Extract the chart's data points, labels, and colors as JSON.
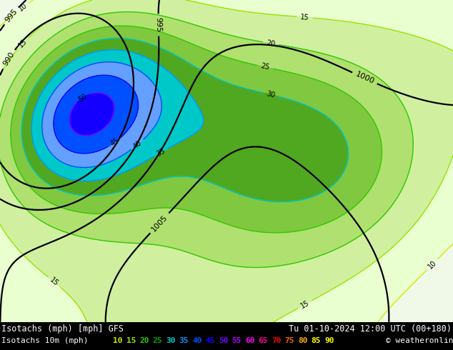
{
  "title_left": "Isotachs (mph) [mph] GFS",
  "title_right": "Tu 01-10-2024 12:00 UTC (00+180)",
  "subtitle_left": "Isotachs 10m (mph)",
  "copyright": "© weatheronline.co.uk",
  "levels": [
    10,
    15,
    20,
    25,
    30,
    35,
    40,
    45,
    50,
    55,
    60,
    65,
    70,
    75,
    80,
    85,
    90
  ],
  "fill_colors": [
    "#eaffd0",
    "#d0f0a0",
    "#b0e070",
    "#80c840",
    "#50a820",
    "#00c8c8",
    "#64a0ff",
    "#0050ff",
    "#1400ff",
    "#7800ff",
    "#b400ff",
    "#ff00ff",
    "#ff0096",
    "#ff0000",
    "#ff6400",
    "#ffaa00",
    "#ffff00"
  ],
  "contour_colors": {
    "10": "#c8f000",
    "15": "#96e600",
    "20": "#32c800",
    "25": "#32c800",
    "30": "#00c8c8",
    "35": "#0096ff",
    "40": "#0050ff",
    "45": "#1400ff",
    "50": "#7800ff",
    "55": "#b400ff",
    "60": "#ff00ff",
    "65": "#ff0096",
    "70": "#ff0000",
    "75": "#ff6400",
    "80": "#ffaa00",
    "85": "#ffff00",
    "90": "#ffff00"
  },
  "legend_colors": [
    "#c8f000",
    "#96e600",
    "#32c800",
    "#00aa00",
    "#00c8c8",
    "#0096ff",
    "#0050ff",
    "#1400ff",
    "#7800ff",
    "#b400ff",
    "#ff00ff",
    "#ff0096",
    "#ff0000",
    "#ff6400",
    "#ffaa00",
    "#ffff00",
    "#ffff00"
  ],
  "map_bg_color": "#b8d8a0",
  "sea_color": "#c8dce8",
  "footer_bg": "#000000",
  "figsize": [
    6.34,
    4.9
  ],
  "dpi": 100
}
